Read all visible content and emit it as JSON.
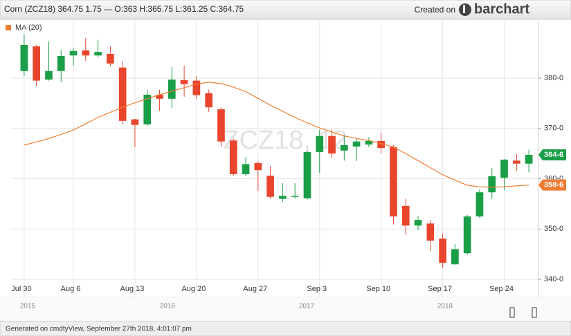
{
  "header": {
    "title": "Corn (ZCZ18) 364.75 1.75 — O:363 H:365.75 L:361.25 C:364.75",
    "created_on": "Created on",
    "brand": "barchart"
  },
  "footer": "Generated on cmdtyView, September 27th 2018, 4:01:07 pm",
  "navigator": {
    "labels": [
      "2015",
      "2016",
      "2017",
      "2018"
    ]
  },
  "chart_data": {
    "type": "candlestick",
    "watermark": "ZCZ18, 12",
    "categories": [
      "Jul 30",
      null,
      null,
      null,
      "Aug 6",
      null,
      null,
      null,
      null,
      "Aug 13",
      null,
      null,
      null,
      null,
      "Aug 20",
      null,
      null,
      null,
      null,
      "Aug 27",
      null,
      null,
      null,
      null,
      "Sep 3",
      null,
      null,
      null,
      null,
      "Sep 10",
      null,
      null,
      null,
      null,
      "Sep 17",
      null,
      null,
      null,
      null,
      "Sep 24",
      null,
      null
    ],
    "up_color": "#1a9e47",
    "down_color": "#e8452c",
    "open": [
      381.4,
      386.3,
      379.7,
      381.4,
      384.5,
      385.5,
      384.5,
      384.8,
      382.1,
      371.8,
      370.8,
      376.7,
      375.9,
      379.6,
      379.5,
      377.0,
      373.8,
      367.6,
      360.9,
      363.1,
      360.6,
      356.0,
      356.4,
      356.1,
      365.3,
      368.5,
      365.6,
      366.4,
      366.8,
      367.5,
      366.3,
      354.6,
      350.7,
      351.1,
      348.1,
      343.0,
      345.2,
      352.5,
      357.3,
      360.2,
      363.6,
      363
    ],
    "high": [
      388.7,
      386.6,
      387.3,
      385.6,
      385.9,
      388.0,
      387.6,
      386.3,
      383.4,
      371.9,
      377.7,
      377.7,
      382.2,
      382.5,
      380.4,
      377.7,
      374.2,
      368.0,
      364.3,
      363.5,
      362.5,
      359.1,
      359.1,
      365.6,
      369.7,
      369.8,
      368.7,
      368.0,
      368.3,
      369.1,
      366.7,
      356.0,
      352.6,
      351.8,
      349.1,
      347.0,
      352.8,
      357.9,
      362.1,
      363.9,
      364.9,
      365.75
    ],
    "low": [
      380.4,
      378.4,
      379.5,
      379.2,
      382.5,
      383.4,
      384.1,
      382.3,
      370.8,
      366.3,
      370.5,
      373.5,
      374.0,
      376.3,
      375.9,
      373.3,
      366.3,
      360.5,
      360.5,
      357.6,
      356.0,
      355.4,
      356.0,
      355.9,
      361.2,
      364.2,
      363.6,
      363.5,
      366.3,
      365.0,
      350.9,
      348.9,
      349.8,
      345.6,
      342.3,
      342.9,
      344.9,
      352.2,
      356.0,
      357.7,
      361.6,
      361.25
    ],
    "close": [
      386.6,
      379.5,
      381.4,
      384.4,
      385.4,
      384.5,
      385.2,
      382.9,
      371.5,
      370.7,
      376.7,
      375.9,
      379.7,
      378.8,
      376.6,
      374.2,
      367.4,
      360.9,
      362.9,
      361.7,
      356.4,
      356.6,
      356.6,
      365.3,
      368.5,
      365.0,
      366.7,
      367.4,
      367.5,
      366.1,
      352.5,
      350.7,
      351.8,
      347.7,
      343.3,
      346.0,
      352.5,
      357.3,
      360.5,
      363.8,
      363.0,
      364.75
    ],
    "ma": {
      "name": "MA (20)",
      "color": "#f07c32",
      "values": [
        366.7,
        367.3,
        368.0,
        368.8,
        369.7,
        370.9,
        372.2,
        373.2,
        374.2,
        375.1,
        375.9,
        376.7,
        377.4,
        378.1,
        378.8,
        379.2,
        378.9,
        378.2,
        377.3,
        376.0,
        374.6,
        373.4,
        372.2,
        371.1,
        370.1,
        369.3,
        368.5,
        368.0,
        367.6,
        367.0,
        366.3,
        365.0,
        363.6,
        362.2,
        360.8,
        359.7,
        358.7,
        358.4,
        358.3,
        358.4,
        358.6,
        358.75
      ]
    },
    "price_tags": [
      {
        "label": "364-6",
        "value": 364.75,
        "color": "#1a9e47"
      },
      {
        "label": "358-6",
        "value": 358.75,
        "color": "#f07c32"
      }
    ],
    "ylim": [
      338.5,
      391.4
    ],
    "yticks": [
      {
        "value": 340,
        "label": "340-0"
      },
      {
        "value": 350,
        "label": "350-0"
      },
      {
        "value": 360,
        "label": "360-0"
      },
      {
        "value": 370,
        "label": "370-0"
      },
      {
        "value": 380,
        "label": "380-0"
      }
    ],
    "grid": true
  }
}
